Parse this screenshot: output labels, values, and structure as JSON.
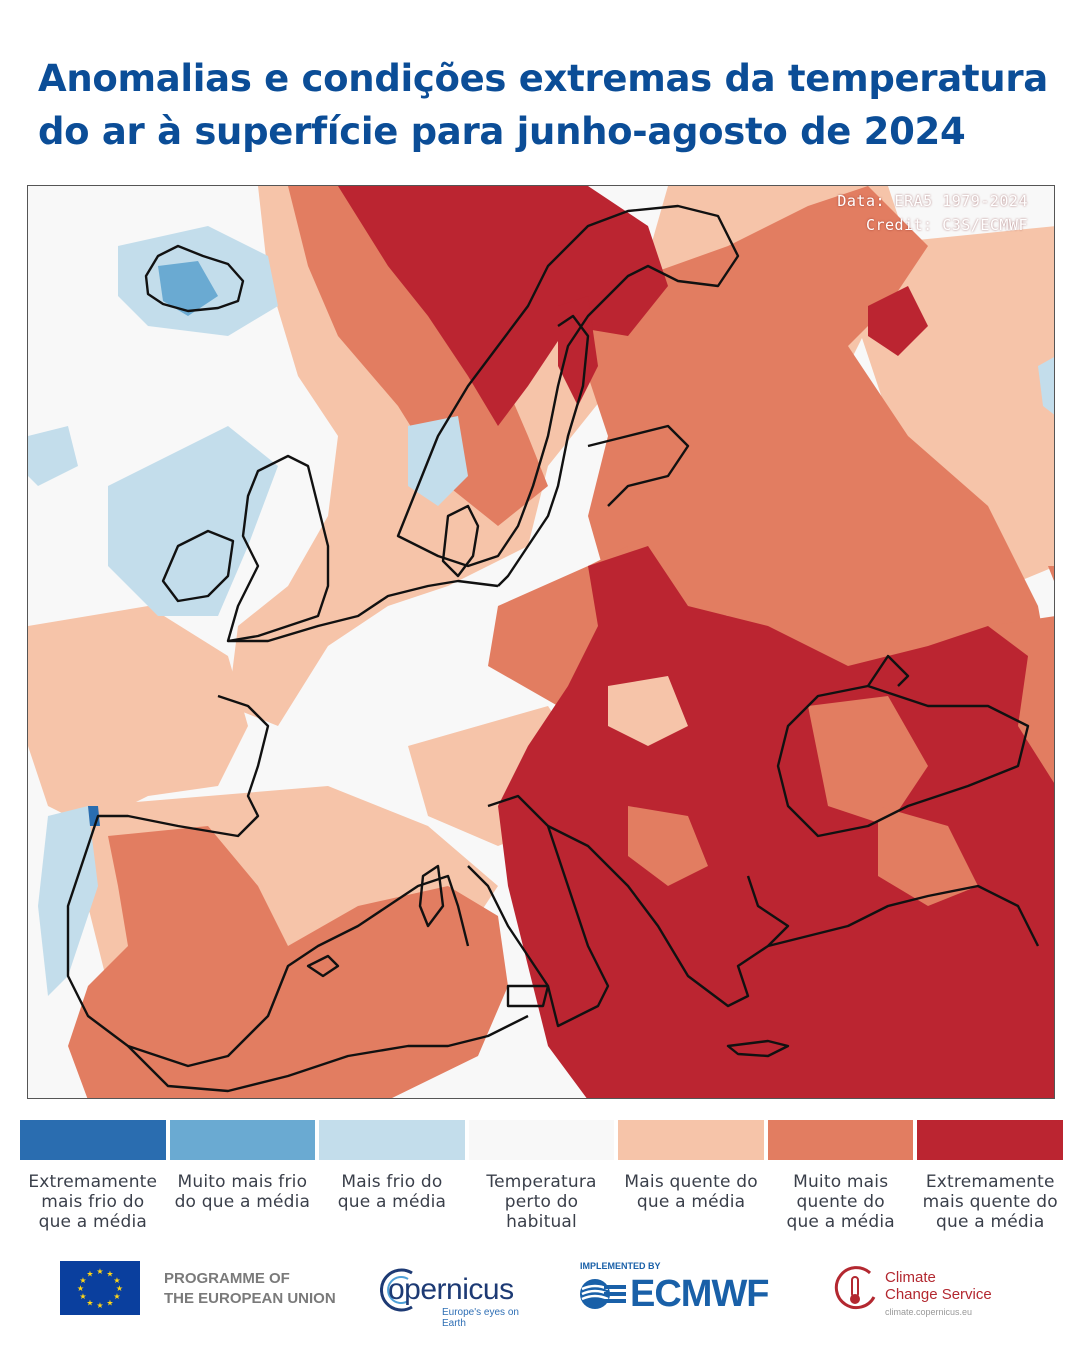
{
  "title": {
    "line1": "Anomalias e condições extremas da temperatura",
    "line2": "do ar à superfície para junho-agosto de 2024"
  },
  "map": {
    "data_source": "Data: ERA5 1979-2024",
    "credit": "Credit: C3S/ECMWF"
  },
  "legend": [
    {
      "color": "#2a6db0",
      "lines": [
        "Extremamente",
        "mais frio do",
        "que a média"
      ]
    },
    {
      "color": "#6aaad2",
      "lines": [
        "Muito mais frio",
        "do que a média"
      ]
    },
    {
      "color": "#c3ddeb",
      "lines": [
        "Mais frio do",
        "que a média"
      ]
    },
    {
      "color": "#f8f8f8",
      "lines": [
        "Temperatura",
        "perto do",
        "habitual"
      ]
    },
    {
      "color": "#f6c4a9",
      "lines": [
        "Mais quente do",
        "que a média"
      ]
    },
    {
      "color": "#e27d61",
      "lines": [
        "Muito mais",
        "quente do",
        "que a média"
      ]
    },
    {
      "color": "#bb2531",
      "lines": [
        "Extremamente",
        "mais quente do",
        "que a média"
      ]
    }
  ],
  "footer": {
    "eu_line1": "PROGRAMME OF",
    "eu_line2": "THE EUROPEAN UNION",
    "copernicus_word": "opernicus",
    "copernicus_tagline": "Europe's eyes on Earth",
    "ecmwf_implemented": "IMPLEMENTED BY",
    "ecmwf_word": "ECMWF",
    "c3s_line1": "Climate",
    "c3s_line2": "Change Service",
    "c3s_url": "climate.copernicus.eu"
  },
  "colors": {
    "title": "#0b4d97",
    "extreme_warm": "#bb2531",
    "much_warm": "#e27d61",
    "warm": "#f6c4a9",
    "near_normal": "#f8f8f8",
    "cool": "#c3ddeb",
    "much_cool": "#6aaad2",
    "extreme_cool": "#2a6db0"
  }
}
